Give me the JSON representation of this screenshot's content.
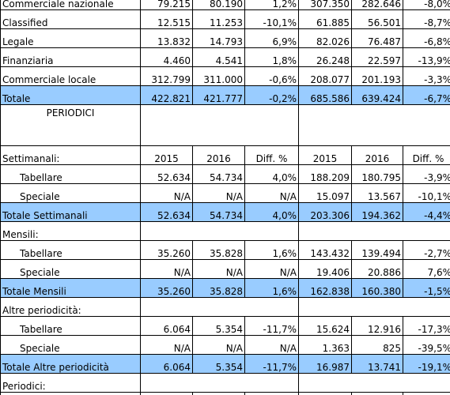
{
  "quotidiani_rows": [
    {
      "label": "Commerciale nazionale",
      "c2015": "79.215",
      "c2016": "80.190",
      "cdiff": "1,2%",
      "d2015": "307.350",
      "d2016": "282.646",
      "ddiff": "-8,0%"
    },
    {
      "label": "Classified",
      "c2015": "12.515",
      "c2016": "11.253",
      "cdiff": "-10,1%",
      "d2015": "61.885",
      "d2016": "56.501",
      "ddiff": "-8,7%"
    },
    {
      "label": "Legale",
      "c2015": "13.832",
      "c2016": "14.793",
      "cdiff": "6,9%",
      "d2015": "82.026",
      "d2016": "76.487",
      "ddiff": "-6,8%"
    },
    {
      "label": "Finanziaria",
      "c2015": "4.460",
      "c2016": "4.541",
      "cdiff": "1,8%",
      "d2015": "26.248",
      "d2016": "22.597",
      "ddiff": "-13,9%"
    },
    {
      "label": "Commerciale locale",
      "c2015": "312.799",
      "c2016": "311.000",
      "cdiff": "-0,6%",
      "d2015": "208.077",
      "d2016": "201.193",
      "ddiff": "-3,3%"
    }
  ],
  "totale": {
    "label": "Totale",
    "c2015": "422.821",
    "c2016": "421.777",
    "cdiff": "-0,2%",
    "d2015": "685.586",
    "d2016": "639.424",
    "ddiff": "-6,7%"
  },
  "periodici_title": "PERIODICI",
  "settimanali_header": {
    "label": "Settimanali:",
    "y2015": "2015",
    "y2016": "2016",
    "diff": "Diff. %",
    "y2015b": "2015",
    "y2016b": "2016",
    "diffb": "Diff. %"
  },
  "settimanali_rows": [
    {
      "label": "Tabellare",
      "c2015": "52.634",
      "c2016": "54.734",
      "cdiff": "4,0%",
      "d2015": "188.209",
      "d2016": "180.795",
      "ddiff": "-3,9%"
    },
    {
      "label": "Speciale",
      "c2015": "N/A",
      "c2016": "N/A",
      "cdiff": "N/A",
      "d2015": "15.097",
      "d2016": "13.567",
      "ddiff": "-10,1%"
    }
  ],
  "totale_settimanali": {
    "label": "Totale Settimanali",
    "c2015": "52.634",
    "c2016": "54.734",
    "cdiff": "4,0%",
    "d2015": "203.306",
    "d2016": "194.362",
    "ddiff": "-4,4%"
  },
  "mensili_label": "Mensili:",
  "mensili_rows": [
    {
      "label": "Tabellare",
      "c2015": "35.260",
      "c2016": "35.828",
      "cdiff": "1,6%",
      "d2015": "143.432",
      "d2016": "139.494",
      "ddiff": "-2,7%"
    },
    {
      "label": "Speciale",
      "c2015": "N/A",
      "c2016": "N/A",
      "cdiff": "N/A",
      "d2015": "19.406",
      "d2016": "20.886",
      "ddiff": "7,6%"
    }
  ],
  "totale_mensili": {
    "label": "Totale Mensili",
    "c2015": "35.260",
    "c2016": "35.828",
    "cdiff": "1,6%",
    "d2015": "162.838",
    "d2016": "160.380",
    "ddiff": "-1,5%"
  },
  "altre_label": "Altre periodicità:",
  "altre_rows": [
    {
      "label": "Tabellare",
      "c2015": "6.064",
      "c2016": "5.354",
      "cdiff": "-11,7%",
      "d2015": "15.624",
      "d2016": "12.916",
      "ddiff": "-17,3%"
    },
    {
      "label": "Speciale",
      "c2015": "N/A",
      "c2016": "N/A",
      "cdiff": "N/A",
      "d2015": "1.363",
      "d2016": "825",
      "ddiff": "-39,5%"
    }
  ],
  "totale_altre": {
    "label": "Totale Altre periodicità",
    "c2015": "6.064",
    "c2016": "5.354",
    "cdiff": "-11,7%",
    "d2015": "16.987",
    "d2016": "13.741",
    "ddiff": "-19,1%"
  },
  "periodici_label": "Periodici:",
  "colors": {
    "total_row_bg": "#99ccff",
    "border": "#000000"
  }
}
